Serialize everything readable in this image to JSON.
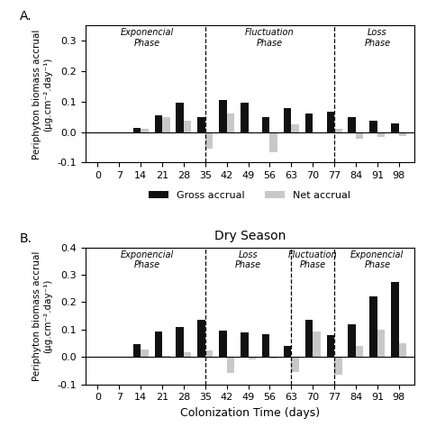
{
  "chart_data": [
    {
      "type": "bar",
      "panel_label": "A.",
      "x": [
        0,
        7,
        14,
        21,
        28,
        35,
        42,
        49,
        56,
        63,
        70,
        77,
        84,
        91,
        98
      ],
      "xlim": [
        -4,
        103
      ],
      "xticks": [
        0,
        7,
        14,
        21,
        28,
        35,
        42,
        49,
        56,
        63,
        70,
        77,
        84,
        91,
        98
      ],
      "ylim": [
        -0.1,
        0.35
      ],
      "yticks": [
        -0.1,
        0.0,
        0.1,
        0.2,
        0.3
      ],
      "y_label": "Periphyton biomass accrual\n(µg.cm⁻².day⁻¹)",
      "series": [
        {
          "name": "Gross accrual",
          "color": "#111111",
          "values": [
            0,
            0,
            0.013,
            0.055,
            0.097,
            0.048,
            0.105,
            0.098,
            0.048,
            0.078,
            0.06,
            0.068,
            0.048,
            0.037,
            0.028
          ]
        },
        {
          "name": "Net accrual",
          "color": "#c8c8c8",
          "values": [
            0,
            0,
            0.01,
            0.048,
            0.038,
            -0.055,
            0.06,
            -0.003,
            -0.065,
            0.025,
            -0.005,
            0.01,
            -0.022,
            -0.015,
            -0.013
          ]
        }
      ],
      "vlines": [
        35,
        77
      ],
      "annotations": [
        {
          "text": "Exponencial\nPhase",
          "x": 16
        },
        {
          "text": "Fluctuation\nPhase",
          "x": 56
        },
        {
          "text": "Loss\nPhase",
          "x": 91
        }
      ],
      "legend": "upper center"
    },
    {
      "type": "bar",
      "panel_label": "B.",
      "title": "Dry Season",
      "x_label": "Colonization Time (days)",
      "x": [
        0,
        7,
        14,
        21,
        28,
        35,
        42,
        49,
        56,
        63,
        70,
        77,
        84,
        91,
        98
      ],
      "xlim": [
        -4,
        103
      ],
      "xticks": [
        0,
        7,
        14,
        21,
        28,
        35,
        42,
        49,
        56,
        63,
        70,
        77,
        84,
        91,
        98
      ],
      "ylim": [
        -0.1,
        0.4
      ],
      "yticks": [
        -0.1,
        0.0,
        0.1,
        0.2,
        0.3,
        0.4
      ],
      "y_label": "Periphyton biomass accrual\n(µg.cm⁻².day⁻¹)",
      "series": [
        {
          "name": "Gross accrual",
          "color": "#111111",
          "values": [
            0,
            0,
            0.048,
            0.093,
            0.11,
            0.135,
            0.095,
            0.09,
            0.083,
            0.04,
            0.135,
            0.08,
            0.12,
            0.22,
            0.275
          ]
        },
        {
          "name": "Net accrual",
          "color": "#c8c8c8",
          "values": [
            0,
            0,
            0.028,
            0.005,
            0.018,
            0.025,
            -0.06,
            -0.008,
            -0.005,
            -0.055,
            0.093,
            -0.065,
            0.04,
            0.098,
            0.05
          ]
        }
      ],
      "vlines": [
        35,
        63,
        77
      ],
      "annotations": [
        {
          "text": "Exponencial\nPhase",
          "x": 16
        },
        {
          "text": "Loss\nPhase",
          "x": 49
        },
        {
          "text": "Fluctuation\nPhase",
          "x": 70
        },
        {
          "text": "Exponencial\nPhase",
          "x": 91
        }
      ]
    }
  ]
}
